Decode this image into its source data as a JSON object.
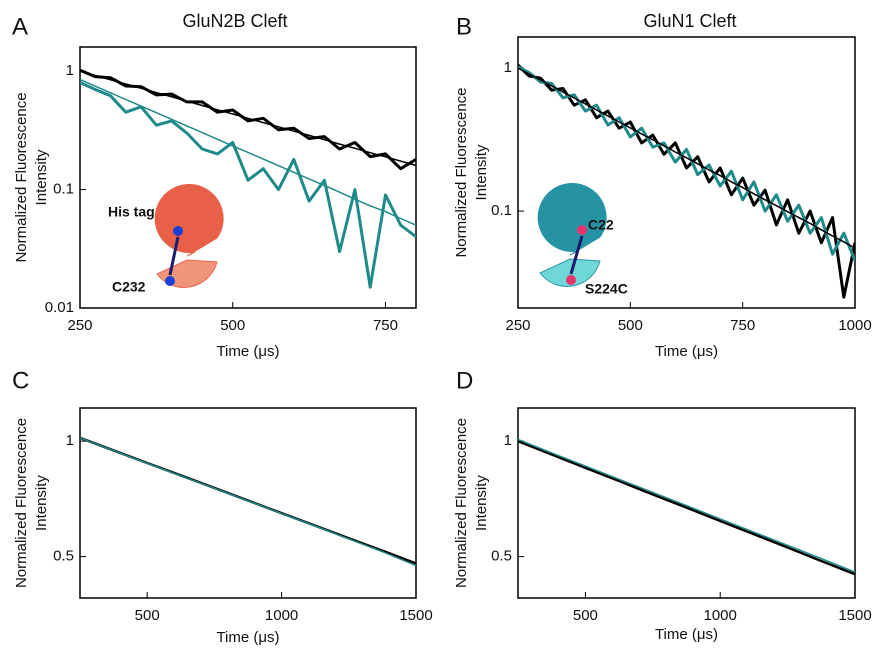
{
  "chart_data": [
    {
      "type": "line",
      "panel_label": "A",
      "title": "GluN2B Cleft",
      "xlabel": "Time (μs)",
      "ylabel": [
        "Normalized Fluorescence",
        "Intensity"
      ],
      "ylog": true,
      "xlim": [
        250,
        800
      ],
      "xticks": [
        250,
        500,
        750
      ],
      "ylim": [
        0.01,
        1.6
      ],
      "yticks": [
        0.01,
        0.1,
        1
      ],
      "x": [
        250,
        275,
        300,
        325,
        350,
        375,
        400,
        425,
        450,
        475,
        500,
        525,
        550,
        575,
        600,
        625,
        650,
        675,
        700,
        725,
        750,
        775,
        800
      ],
      "series": [
        {
          "color": "#000000",
          "width": 3,
          "values": [
            1.02,
            0.9,
            0.88,
            0.75,
            0.74,
            0.63,
            0.64,
            0.55,
            0.55,
            0.45,
            0.47,
            0.38,
            0.4,
            0.32,
            0.33,
            0.27,
            0.28,
            0.22,
            0.25,
            0.19,
            0.2,
            0.15,
            0.18
          ]
        },
        {
          "color": "#1f8a8a",
          "width": 3,
          "values": [
            0.8,
            0.7,
            0.62,
            0.45,
            0.5,
            0.35,
            0.38,
            0.3,
            0.22,
            0.2,
            0.25,
            0.12,
            0.15,
            0.1,
            0.18,
            0.08,
            0.12,
            0.03,
            0.1,
            0.015,
            0.09,
            0.05,
            0.04
          ]
        },
        {
          "color": "#000000",
          "width": 1.5,
          "values": [
            1.0,
            0.92,
            0.846,
            0.779,
            0.717,
            0.659,
            0.607,
            0.558,
            0.513,
            0.472,
            0.435,
            0.4,
            0.368,
            0.339,
            0.311,
            0.287,
            0.264,
            0.242,
            0.223,
            0.205,
            0.189,
            0.174,
            0.16
          ]
        },
        {
          "color": "#1f8a8a",
          "width": 1.5,
          "values": [
            0.85,
            0.747,
            0.657,
            0.577,
            0.507,
            0.446,
            0.392,
            0.345,
            0.303,
            0.266,
            0.234,
            0.206,
            0.181,
            0.159,
            0.14,
            0.123,
            0.108,
            0.095,
            0.083,
            0.073,
            0.065,
            0.057,
            0.05
          ]
        }
      ],
      "annotations": [
        {
          "text": "His tag"
        },
        {
          "text": "C232"
        }
      ]
    },
    {
      "type": "line",
      "panel_label": "B",
      "title": "GluN1 Cleft",
      "xlabel": "Time (μs)",
      "ylabel": [
        "Normalized Fluorescence",
        "Intensity"
      ],
      "ylog": true,
      "xlim": [
        250,
        1000
      ],
      "xticks": [
        250,
        500,
        750,
        1000
      ],
      "ylim": [
        0.021,
        1.65
      ],
      "yticks": [
        0.1,
        1
      ],
      "x": [
        250,
        275,
        300,
        325,
        350,
        375,
        400,
        425,
        450,
        475,
        500,
        525,
        550,
        575,
        600,
        625,
        650,
        675,
        700,
        725,
        750,
        775,
        800,
        825,
        850,
        875,
        900,
        925,
        950,
        975,
        1000
      ],
      "series": [
        {
          "color": "#000000",
          "width": 3,
          "values": [
            1.05,
            0.88,
            0.85,
            0.7,
            0.72,
            0.55,
            0.6,
            0.45,
            0.5,
            0.38,
            0.42,
            0.3,
            0.34,
            0.25,
            0.3,
            0.2,
            0.24,
            0.16,
            0.2,
            0.13,
            0.17,
            0.11,
            0.14,
            0.08,
            0.12,
            0.07,
            0.1,
            0.06,
            0.09,
            0.025,
            0.06
          ]
        },
        {
          "color": "#1f8a8a",
          "width": 3,
          "values": [
            1.02,
            0.93,
            0.8,
            0.78,
            0.62,
            0.65,
            0.5,
            0.55,
            0.4,
            0.45,
            0.33,
            0.38,
            0.28,
            0.3,
            0.22,
            0.27,
            0.18,
            0.21,
            0.15,
            0.19,
            0.12,
            0.16,
            0.1,
            0.13,
            0.085,
            0.11,
            0.07,
            0.09,
            0.05,
            0.07,
            0.045
          ]
        },
        {
          "color": "#000000",
          "width": 1.5,
          "values": [
            1.0,
            0.908,
            0.825,
            0.749,
            0.68,
            0.618,
            0.561,
            0.509,
            0.463,
            0.42,
            0.382,
            0.346,
            0.315,
            0.286,
            0.259,
            0.236,
            0.214,
            0.194,
            0.177,
            0.16,
            0.146,
            0.132,
            0.12,
            0.109,
            0.099,
            0.09,
            0.082,
            0.074,
            0.067,
            0.061,
            0.055
          ]
        }
      ],
      "annotations": [
        {
          "text": "C22"
        },
        {
          "text": "S224C"
        }
      ]
    },
    {
      "type": "line",
      "panel_label": "C",
      "xlabel": "Time (μs)",
      "ylabel": [
        "Normalized Fluorescence",
        "Intensity"
      ],
      "ylog": true,
      "xlim": [
        250,
        1500
      ],
      "xticks": [
        500,
        1000,
        1500
      ],
      "ylim": [
        0.39,
        1.22
      ],
      "yticks": [
        0.5,
        1
      ],
      "x": [
        250,
        375,
        500,
        625,
        750,
        875,
        1000,
        1125,
        1250,
        1375,
        1500
      ],
      "series": [
        {
          "color": "#000000",
          "width": 2.5,
          "values": [
            1.02,
            0.946,
            0.877,
            0.814,
            0.755,
            0.7,
            0.649,
            0.602,
            0.558,
            0.518,
            0.48
          ]
        },
        {
          "color": "#1f8a8a",
          "width": 1.5,
          "values": [
            1.02,
            0.945,
            0.876,
            0.812,
            0.754,
            0.699,
            0.648,
            0.601,
            0.556,
            0.515,
            0.474
          ]
        }
      ]
    },
    {
      "type": "line",
      "panel_label": "D",
      "xlabel": "Time (μs)",
      "ylabel": [
        "Normalized Fluorescence",
        "Intensity"
      ],
      "ylog": true,
      "xlim": [
        250,
        1500
      ],
      "xticks": [
        500,
        1000,
        1500
      ],
      "ylim": [
        0.39,
        1.22
      ],
      "yticks": [
        0.5,
        1
      ],
      "x": [
        250,
        375,
        500,
        625,
        750,
        875,
        1000,
        1125,
        1250,
        1375,
        1500
      ],
      "series": [
        {
          "color": "#000000",
          "width": 2.5,
          "values": [
            1.0,
            0.923,
            0.852,
            0.787,
            0.726,
            0.671,
            0.619,
            0.572,
            0.528,
            0.487,
            0.45
          ]
        },
        {
          "color": "#1f8a8a",
          "width": 1.5,
          "values": [
            1.01,
            0.932,
            0.861,
            0.795,
            0.735,
            0.679,
            0.627,
            0.579,
            0.535,
            0.494,
            0.456
          ]
        }
      ]
    }
  ]
}
